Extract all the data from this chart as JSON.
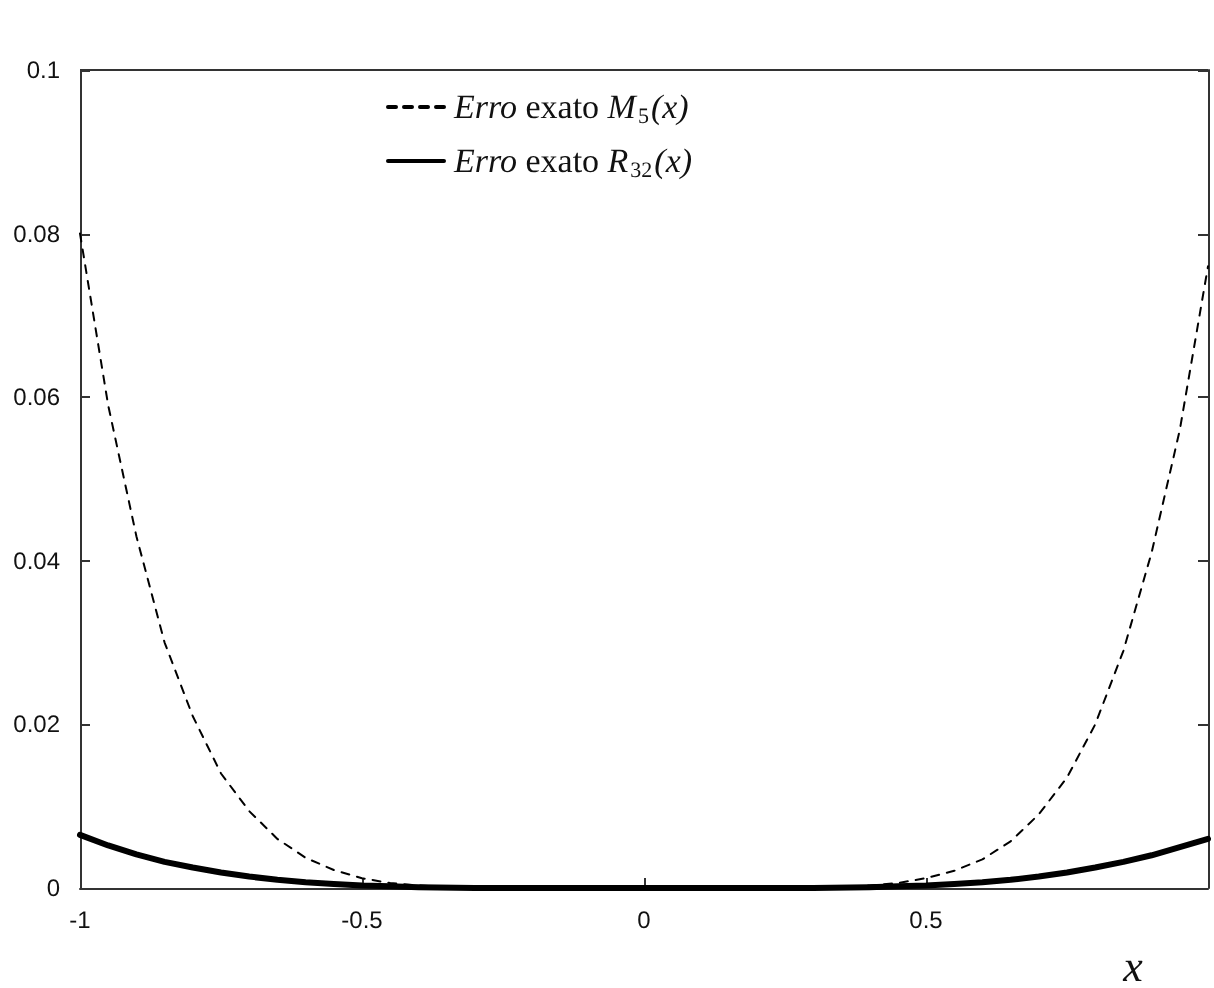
{
  "chart_data": {
    "type": "line",
    "xlabel": "x",
    "xlim": [
      -1,
      1
    ],
    "xticks": [
      -1,
      -0.5,
      0,
      0.5
    ],
    "ylim": [
      0,
      0.1
    ],
    "yticks": [
      0,
      0.02,
      0.04,
      0.06,
      0.08,
      0.1
    ],
    "grid": false,
    "legend": "top",
    "marker": "none",
    "x": [
      -1,
      -0.95,
      -0.9,
      -0.85,
      -0.8,
      -0.75,
      -0.7,
      -0.65,
      -0.6,
      -0.55,
      -0.5,
      -0.45,
      -0.4,
      -0.3,
      -0.2,
      0,
      0.2,
      0.3,
      0.4,
      0.45,
      0.5,
      0.55,
      0.6,
      0.65,
      0.7,
      0.75,
      0.8,
      0.85,
      0.9,
      0.95,
      1
    ],
    "series": [
      {
        "name": "Erro exato M$_{5}$(x)",
        "color": "#000000",
        "line_style": "dashed",
        "values": [
          0.08,
          0.059,
          0.043,
          0.03,
          0.021,
          0.014,
          0.0094,
          0.006,
          0.0037,
          0.0022,
          0.0012,
          0.0006,
          0.0003,
          0,
          0,
          0,
          0,
          0,
          0.0003,
          0.0006,
          0.0012,
          0.0021,
          0.0035,
          0.0057,
          0.009,
          0.0135,
          0.02,
          0.029,
          0.041,
          0.056,
          0.076
        ]
      },
      {
        "name": "Erro exato R$_{32}$(x)",
        "color": "#000000",
        "line_style": "solid",
        "values": [
          0.0065,
          0.0052,
          0.0041,
          0.0032,
          0.0025,
          0.0019,
          0.0014,
          0.001,
          0.0007,
          0.0005,
          0.0003,
          0.0002,
          0.0001,
          0,
          0,
          0,
          0,
          0,
          0.0001,
          0.0002,
          0.0003,
          0.0005,
          0.0007,
          0.001,
          0.0014,
          0.0019,
          0.0025,
          0.0032,
          0.004,
          0.005,
          0.006
        ]
      }
    ]
  }
}
